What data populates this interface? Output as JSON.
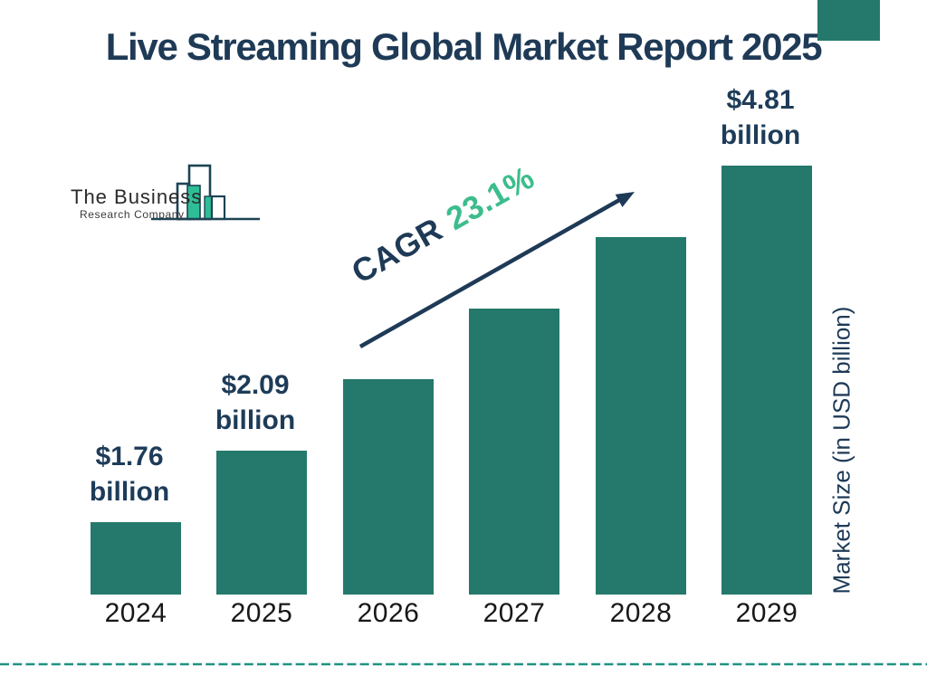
{
  "title": "Live Streaming Global Market Report 2025",
  "logo": {
    "line1": "The Business",
    "line2": "Research Company"
  },
  "chart_data": {
    "type": "bar",
    "title": "Live Streaming Global Market Report 2025",
    "categories": [
      "2024",
      "2025",
      "2026",
      "2027",
      "2028",
      "2029"
    ],
    "values": [
      1.76,
      2.09,
      2.57,
      3.17,
      3.9,
      4.81
    ],
    "value_labels": [
      {
        "category": "2024",
        "amount": "$1.76",
        "unit": "billion"
      },
      {
        "category": "2025",
        "amount": "$2.09",
        "unit": "billion"
      },
      {
        "category": "2029",
        "amount": "$4.81",
        "unit": "billion"
      }
    ],
    "annotation": {
      "prefix": "CAGR",
      "value": "23.1%"
    },
    "ylabel": "Market Size (in USD billion)",
    "xlabel": "",
    "legend": false,
    "grid": false,
    "bar_color": "#24796C"
  },
  "colors": {
    "navy": "#1E3A56",
    "bar_teal": "#24796C",
    "accent_green": "#3BBD8C",
    "dashed_line_teal": "#1F9284",
    "logo_teal": "#2EBE96",
    "background": "#FFFFFF"
  }
}
